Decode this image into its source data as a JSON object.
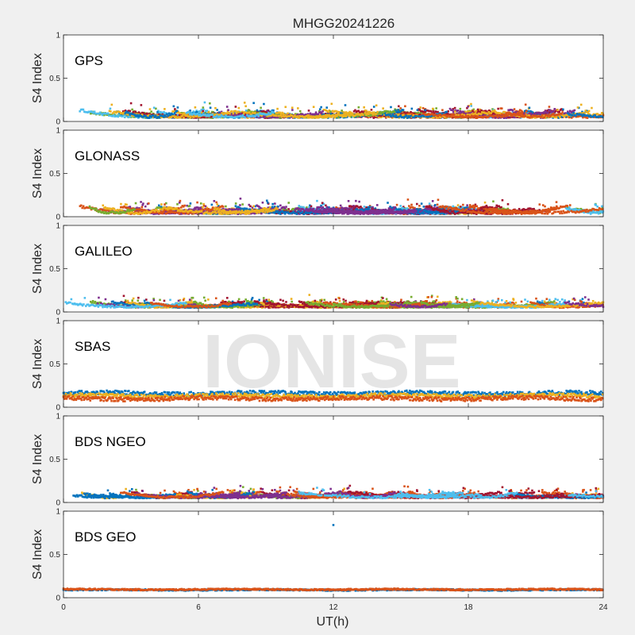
{
  "chart_data": {
    "type": "scatter",
    "title": "MHGG20241226",
    "xlabel": "UT(h)",
    "ylabel": "S4 Index",
    "xlim": [
      0,
      24
    ],
    "ylim": [
      0,
      1
    ],
    "xticks": [
      "0",
      "6",
      "12",
      "18",
      "24"
    ],
    "yticks": [
      "0",
      "0.5",
      "1"
    ],
    "watermark": "IONISE",
    "colors": [
      "#0072BD",
      "#D95319",
      "#EDB120",
      "#7E2F8E",
      "#77AC30",
      "#4DBEEE",
      "#A2142F"
    ],
    "panels": [
      {
        "name": "GPS",
        "baseline": 0.08,
        "spread": 0.05,
        "max": 0.22
      },
      {
        "name": "GLONASS",
        "baseline": 0.07,
        "spread": 0.05,
        "max": 0.23
      },
      {
        "name": "GALILEO",
        "baseline": 0.08,
        "spread": 0.04,
        "max": 0.22
      },
      {
        "name": "SBAS",
        "baseline": 0.13,
        "spread": 0.03,
        "max": 0.24,
        "series": [
          {
            "color": "#0072BD",
            "level": 0.16
          },
          {
            "color": "#EDB120",
            "level": 0.13
          },
          {
            "color": "#D95319",
            "level": 0.1
          }
        ]
      },
      {
        "name": "BDS NGEO",
        "baseline": 0.08,
        "spread": 0.04,
        "max": 0.25
      },
      {
        "name": "BDS GEO",
        "baseline": 0.09,
        "spread": 0.01,
        "max": 0.11,
        "outliers": [
          {
            "x": 12.0,
            "y": 0.84
          }
        ],
        "series": [
          {
            "color": "#0072BD",
            "level": 0.09
          },
          {
            "color": "#D95319",
            "level": 0.095
          }
        ]
      }
    ]
  }
}
